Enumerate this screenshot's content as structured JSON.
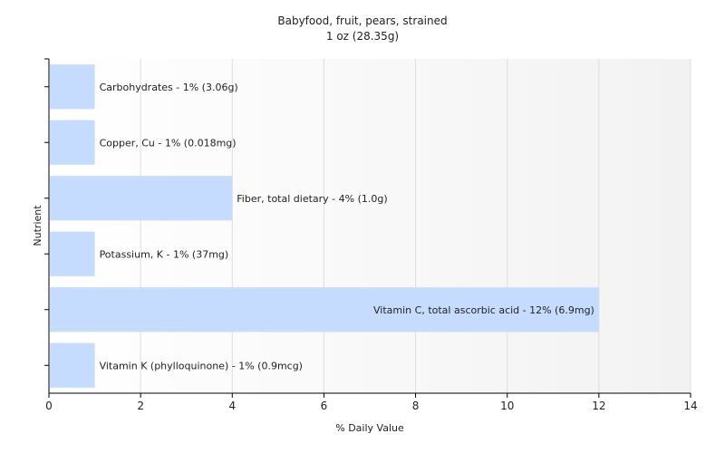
{
  "chart_data": {
    "type": "bar",
    "orientation": "horizontal",
    "title": "Babyfood, fruit, pears, strained",
    "subtitle": "1 oz (28.35g)",
    "xlabel": "% Daily Value",
    "ylabel": "Nutrient",
    "xlim": [
      0,
      14
    ],
    "xticks": [
      0,
      2,
      4,
      6,
      8,
      10,
      12,
      14
    ],
    "grid": "vertical",
    "legend": "none",
    "bar_color": "#c6dcff",
    "categories": [
      "Carbohydrates - 1% (3.06g)",
      "Copper, Cu - 1% (0.018mg)",
      "Fiber, total dietary - 4% (1.0g)",
      "Potassium, K - 1% (37mg)",
      "Vitamin C, total ascorbic acid - 12% (6.9mg)",
      "Vitamin K (phylloquinone) - 1% (0.9mcg)"
    ],
    "values": [
      1,
      1,
      4,
      1,
      12,
      1
    ]
  }
}
